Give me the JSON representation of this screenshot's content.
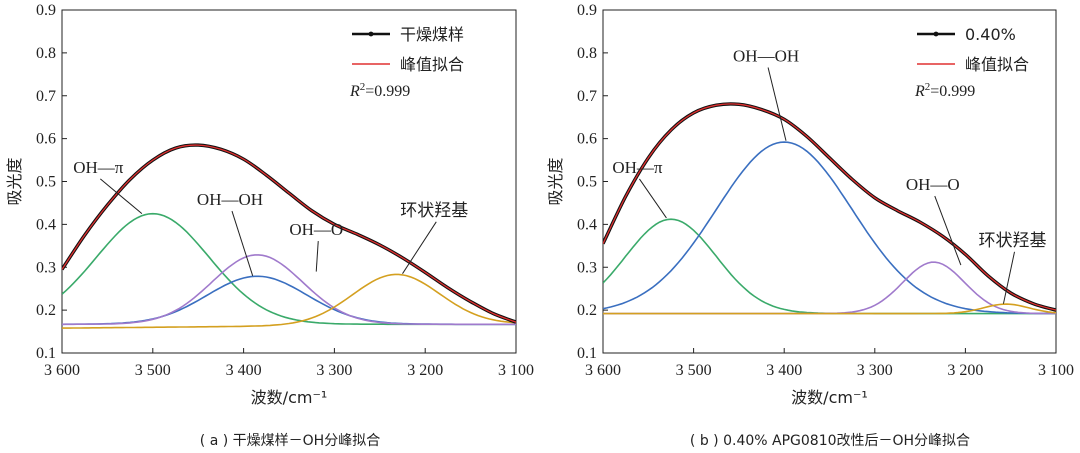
{
  "chart_data": [
    {
      "type": "line",
      "caption": "( a ) 干燥煤样－OH分峰拟合",
      "xlabel": "波数/cm⁻¹",
      "ylabel": "吸光度",
      "xlim": [
        3600,
        3100
      ],
      "ylim": [
        0.1,
        0.9
      ],
      "xticks": [
        3600,
        3500,
        3400,
        3300,
        3200,
        3100
      ],
      "xtick_labels": [
        "3 600",
        "3 500",
        "3 400",
        "3 300",
        "3 200",
        "3 100"
      ],
      "yticks": [
        0.1,
        0.2,
        0.3,
        0.4,
        0.5,
        0.6,
        0.7,
        0.8,
        0.9
      ],
      "ytick_labels": [
        "0.1",
        "0.2",
        "0.3",
        "0.4",
        "0.5",
        "0.6",
        "0.7",
        "0.8",
        "0.9"
      ],
      "legend": [
        {
          "label": "干燥煤样",
          "color": "#111111",
          "marker": true
        },
        {
          "label": "峰值拟合",
          "color": "#e03030",
          "marker": false
        }
      ],
      "r2": "0.999",
      "baseline": 0.167,
      "components": [
        {
          "name": "OH—π",
          "color": "#3aaa6a",
          "center": 3500,
          "height": 0.258,
          "width": 62
        },
        {
          "name": "OH—OH",
          "color": "#3a6fc0",
          "center": 3385,
          "height": 0.112,
          "width": 55
        },
        {
          "name": "OH—O",
          "color": "#a07acc",
          "center": 3385,
          "height": 0.162,
          "width": 50
        },
        {
          "name": "环状羟基",
          "color": "#d4a020",
          "center": 3232,
          "height": 0.118,
          "width": 48,
          "base": 0.158,
          "base_slope": 0.01
        }
      ],
      "total": {
        "x": [
          3600,
          3575,
          3550,
          3525,
          3500,
          3475,
          3450,
          3425,
          3400,
          3375,
          3350,
          3325,
          3300,
          3275,
          3250,
          3225,
          3200,
          3175,
          3150,
          3125,
          3100
        ],
        "y": [
          0.295,
          0.375,
          0.445,
          0.505,
          0.55,
          0.578,
          0.585,
          0.575,
          0.552,
          0.515,
          0.473,
          0.432,
          0.4,
          0.377,
          0.352,
          0.322,
          0.288,
          0.252,
          0.22,
          0.192,
          0.172
        ]
      },
      "annotations": [
        {
          "text": "OH—π",
          "x": 3560,
          "y": 0.52,
          "tx": 3512,
          "ty": 0.425
        },
        {
          "text": "OH—OH",
          "x": 3415,
          "y": 0.445,
          "tx": 3390,
          "ty": 0.28
        },
        {
          "text": "OH—O",
          "x": 3320,
          "y": 0.375,
          "tx": 3320,
          "ty": 0.29
        },
        {
          "text": "环状羟基",
          "x": 3190,
          "y": 0.42,
          "tx": 3225,
          "ty": 0.285
        }
      ]
    },
    {
      "type": "line",
      "caption": "( b ) 0.40% APG0810改性后－OH分峰拟合",
      "xlabel": "波数/cm⁻¹",
      "ylabel": "吸光度",
      "xlim": [
        3600,
        3100
      ],
      "ylim": [
        0.1,
        0.9
      ],
      "xticks": [
        3600,
        3500,
        3400,
        3300,
        3200,
        3100
      ],
      "xtick_labels": [
        "3 600",
        "3 500",
        "3 400",
        "3 300",
        "3 200",
        "3 100"
      ],
      "yticks": [
        0.1,
        0.2,
        0.3,
        0.4,
        0.5,
        0.6,
        0.7,
        0.8,
        0.9
      ],
      "ytick_labels": [
        "0.1",
        "0.2",
        "0.3",
        "0.4",
        "0.5",
        "0.6",
        "0.7",
        "0.8",
        "0.9"
      ],
      "legend": [
        {
          "label": "0.40%",
          "color": "#111111",
          "marker": true
        },
        {
          "label": "峰值拟合",
          "color": "#e03030",
          "marker": false
        }
      ],
      "r2": "0.999",
      "baseline": 0.192,
      "components": [
        {
          "name": "OH—π",
          "color": "#3aaa6a",
          "center": 3525,
          "height": 0.22,
          "width": 50
        },
        {
          "name": "OH—OH",
          "color": "#3a6fc0",
          "center": 3400,
          "height": 0.4,
          "width": 75
        },
        {
          "name": "OH—O",
          "color": "#a07acc",
          "center": 3235,
          "height": 0.12,
          "width": 34
        },
        {
          "name": "环状羟基",
          "color": "#d4a020",
          "center": 3155,
          "height": 0.022,
          "width": 25
        }
      ],
      "total": {
        "x": [
          3600,
          3575,
          3550,
          3525,
          3500,
          3475,
          3450,
          3425,
          3400,
          3375,
          3350,
          3325,
          3300,
          3275,
          3250,
          3225,
          3200,
          3175,
          3150,
          3125,
          3100
        ],
        "y": [
          0.355,
          0.465,
          0.555,
          0.62,
          0.66,
          0.678,
          0.68,
          0.668,
          0.645,
          0.605,
          0.555,
          0.505,
          0.462,
          0.432,
          0.405,
          0.372,
          0.33,
          0.28,
          0.24,
          0.215,
          0.2
        ]
      },
      "annotations": [
        {
          "text": "OH—OH",
          "x": 3420,
          "y": 0.78,
          "tx": 3398,
          "ty": 0.595
        },
        {
          "text": "OH—π",
          "x": 3562,
          "y": 0.52,
          "tx": 3530,
          "ty": 0.415
        },
        {
          "text": "OH—O",
          "x": 3236,
          "y": 0.48,
          "tx": 3205,
          "ty": 0.305
        },
        {
          "text": "环状羟基",
          "x": 3148,
          "y": 0.35,
          "tx": 3158,
          "ty": 0.215
        }
      ]
    }
  ]
}
